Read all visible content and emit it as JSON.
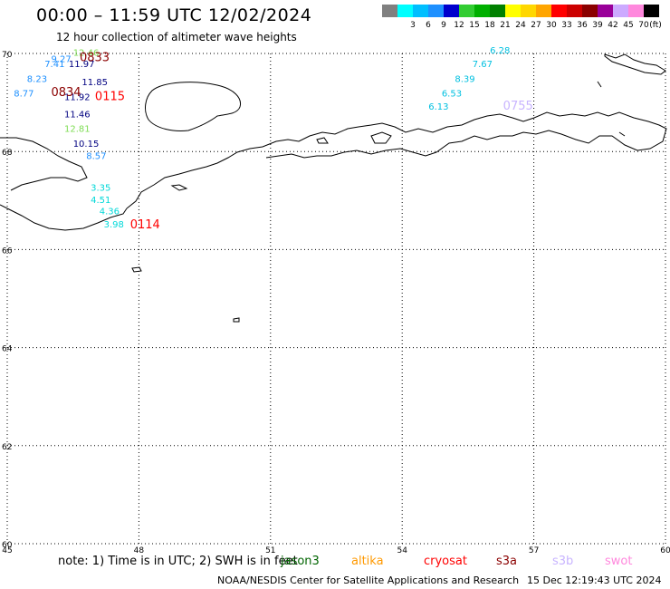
{
  "title": "00:00 – 11:59 UTC 12/02/2024",
  "subtitle": "12 hour collection of altimeter wave heights",
  "colorbar": {
    "unit": "(ft)",
    "levels": [
      {
        "label": "",
        "color": "#808080"
      },
      {
        "label": "3",
        "color": "#00ffff"
      },
      {
        "label": "6",
        "color": "#00bfff"
      },
      {
        "label": "9",
        "color": "#1e90ff"
      },
      {
        "label": "12",
        "color": "#0000cd"
      },
      {
        "label": "15",
        "color": "#32cd32"
      },
      {
        "label": "18",
        "color": "#00b000"
      },
      {
        "label": "21",
        "color": "#008000"
      },
      {
        "label": "24",
        "color": "#ffff00"
      },
      {
        "label": "27",
        "color": "#ffd700"
      },
      {
        "label": "30",
        "color": "#ffa500"
      },
      {
        "label": "33",
        "color": "#ff0000"
      },
      {
        "label": "36",
        "color": "#cc0000"
      },
      {
        "label": "39",
        "color": "#8b0000"
      },
      {
        "label": "42",
        "color": "#990099"
      },
      {
        "label": "45",
        "color": "#ccaaff"
      },
      {
        "label": "70",
        "color": "#ff88dd"
      },
      {
        "label": "",
        "color": "#000000"
      }
    ]
  },
  "map": {
    "lon_range": [
      45,
      60
    ],
    "lat_range": [
      60,
      70
    ],
    "lon_ticks": [
      "45",
      "48",
      "51",
      "54",
      "57",
      "60"
    ],
    "lat_ticks": [
      "70",
      "68",
      "66",
      "64",
      "62",
      "60"
    ],
    "grid": "dotted"
  },
  "observations": [
    {
      "value": "12.46",
      "color": "#7fdd55",
      "lon": 46.5,
      "lat": 69.95
    },
    {
      "value": "9.27",
      "color": "#1e90ff",
      "lon": 46.0,
      "lat": 69.82
    },
    {
      "value": "7.41",
      "color": "#1e90ff",
      "lon": 45.85,
      "lat": 69.72
    },
    {
      "value": "11.97",
      "color": "#000080",
      "lon": 46.4,
      "lat": 69.72
    },
    {
      "value": "8.23",
      "color": "#1e90ff",
      "lon": 45.45,
      "lat": 69.42
    },
    {
      "value": "11.85",
      "color": "#000080",
      "lon": 46.7,
      "lat": 69.35
    },
    {
      "value": "8.77",
      "color": "#1e90ff",
      "lon": 45.15,
      "lat": 69.12
    },
    {
      "value": "11.92",
      "color": "#000080",
      "lon": 46.3,
      "lat": 69.05
    },
    {
      "value": "11.46",
      "color": "#000080",
      "lon": 46.3,
      "lat": 68.7
    },
    {
      "value": "12.81",
      "color": "#7fdd55",
      "lon": 46.3,
      "lat": 68.4
    },
    {
      "value": "10.15",
      "color": "#000080",
      "lon": 46.5,
      "lat": 68.1
    },
    {
      "value": "8.57",
      "color": "#1e90ff",
      "lon": 46.8,
      "lat": 67.85
    },
    {
      "value": "3.35",
      "color": "#00d8d8",
      "lon": 46.9,
      "lat": 67.2
    },
    {
      "value": "4.51",
      "color": "#00d8d8",
      "lon": 46.9,
      "lat": 66.95
    },
    {
      "value": "4.36",
      "color": "#00d8d8",
      "lon": 47.1,
      "lat": 66.72
    },
    {
      "value": "3.98",
      "color": "#00d8d8",
      "lon": 47.2,
      "lat": 66.45
    },
    {
      "value": "6.28",
      "color": "#00c0e0",
      "lon": 56.0,
      "lat": 70.0
    },
    {
      "value": "7.67",
      "color": "#00c0e0",
      "lon": 55.6,
      "lat": 69.72
    },
    {
      "value": "8.39",
      "color": "#00c0e0",
      "lon": 55.2,
      "lat": 69.42
    },
    {
      "value": "6.53",
      "color": "#00c0e0",
      "lon": 54.9,
      "lat": 69.12
    },
    {
      "value": "6.13",
      "color": "#00c0e0",
      "lon": 54.6,
      "lat": 68.85
    }
  ],
  "time_labels": [
    {
      "text": "0833",
      "color": "#8b0000",
      "lon": 46.65,
      "lat": 69.84
    },
    {
      "text": "0834",
      "color": "#8b0000",
      "lon": 46.0,
      "lat": 69.13
    },
    {
      "text": "0115",
      "color": "#ff0000",
      "lon": 47.0,
      "lat": 69.05
    },
    {
      "text": "0114",
      "color": "#ff0000",
      "lon": 47.8,
      "lat": 66.43
    },
    {
      "text": "0755",
      "color": "#c8b4ff",
      "lon": 56.3,
      "lat": 68.85
    }
  ],
  "note": "note:  1) Time is in UTC;  2) SWH is in feet",
  "satellites": [
    {
      "name": "jason3",
      "color": "#006400"
    },
    {
      "name": "altika",
      "color": "#ff9900"
    },
    {
      "name": "cryosat",
      "color": "#ff0000"
    },
    {
      "name": "s3a",
      "color": "#8b0000"
    },
    {
      "name": "s3b",
      "color": "#c8b4ff"
    },
    {
      "name": "swot",
      "color": "#ff88dd"
    }
  ],
  "credit": "NOAA/NESDIS Center for Satellite Applications and Research",
  "timestamp": "15 Dec 12:19:43 UTC 2024"
}
